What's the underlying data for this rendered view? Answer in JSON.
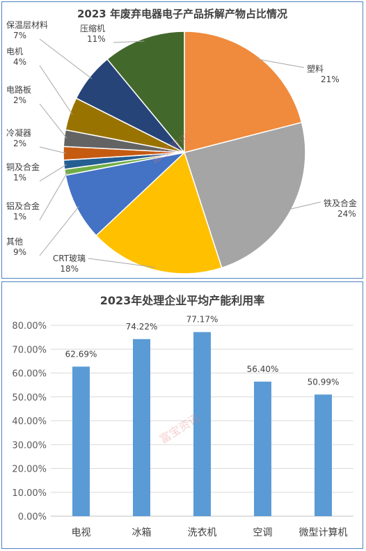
{
  "chart_data": [
    {
      "type": "pie",
      "title": "2023 年废弃电器电子产品拆解产物占比情况",
      "slices": [
        {
          "name": "塑料",
          "label": "21%",
          "value": 21,
          "color": "#f08a3c"
        },
        {
          "name": "铁及合金",
          "label": "24%",
          "value": 24,
          "color": "#a5a5a5"
        },
        {
          "name": "CRT玻璃",
          "label": "18%",
          "value": 18,
          "color": "#ffc000"
        },
        {
          "name": "其他",
          "label": "9%",
          "value": 9,
          "color": "#4472c4"
        },
        {
          "name": "铝及合金",
          "label": "1%",
          "value": 0.8,
          "color": "#70ad47"
        },
        {
          "name": "铜及合金",
          "label": "1%",
          "value": 1.2,
          "color": "#255e91"
        },
        {
          "name": "冷凝器",
          "label": "2%",
          "value": 1.8,
          "color": "#c55a11"
        },
        {
          "name": "电路板",
          "label": "2%",
          "value": 2.2,
          "color": "#636363"
        },
        {
          "name": "电机",
          "label": "4%",
          "value": 4.4,
          "color": "#997300"
        },
        {
          "name": "保温层材料",
          "label": "7%",
          "value": 6.6,
          "color": "#264478"
        },
        {
          "name": "压缩机",
          "label": "11%",
          "value": 11,
          "color": "#43682b"
        }
      ]
    },
    {
      "type": "bar",
      "title": "2023年处理企业平均产能利用率",
      "categories": [
        "电视",
        "冰箱",
        "洗衣机",
        "空调",
        "微型计算机"
      ],
      "values": [
        62.69,
        74.22,
        77.17,
        56.4,
        50.99
      ],
      "value_labels": [
        "62.69%",
        "74.22%",
        "77.17%",
        "56.40%",
        "50.99%"
      ],
      "ylim": [
        0,
        80
      ],
      "yticks": [
        "0.00%",
        "10.00%",
        "20.00%",
        "30.00%",
        "40.00%",
        "50.00%",
        "60.00%",
        "70.00%",
        "80.00%"
      ],
      "color": "#5b9bd5",
      "grid": true
    }
  ],
  "watermark": "富宝资讯"
}
